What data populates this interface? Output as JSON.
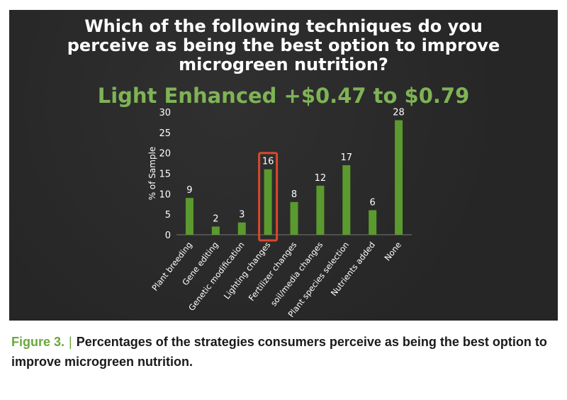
{
  "slide": {
    "title_lines": [
      "Which of the following techniques do you",
      "perceive as being the best option to improve",
      "microgreen nutrition?"
    ],
    "subtitle": "Light Enhanced +$0.47 to $0.79"
  },
  "chart_data": {
    "type": "bar",
    "categories": [
      "Plant breeding",
      "Gene editing",
      "Genetic modification",
      "Lighting changes",
      "Fertilizer changes",
      "soil/media changes",
      "Plant species selection",
      "Nutrients added",
      "None"
    ],
    "values": [
      9,
      2,
      3,
      16,
      8,
      12,
      17,
      6,
      28
    ],
    "data_labels": [
      "9",
      "2",
      "3",
      "16",
      "8",
      "12",
      "17",
      "6",
      "28"
    ],
    "ylabel": "% of Sample",
    "ylim": [
      0,
      30
    ],
    "yticks": [
      0,
      5,
      10,
      15,
      20,
      25,
      30
    ],
    "bar_color": "#5b9a2e",
    "highlight_category": "Lighting changes",
    "highlight_color": "#d9482b",
    "grid": false
  },
  "caption": {
    "figure_label": "Figure 3.",
    "separator": "|",
    "text": "Percentages of the strategies consumers perceive as being the best option to improve microgreen nutrition."
  }
}
